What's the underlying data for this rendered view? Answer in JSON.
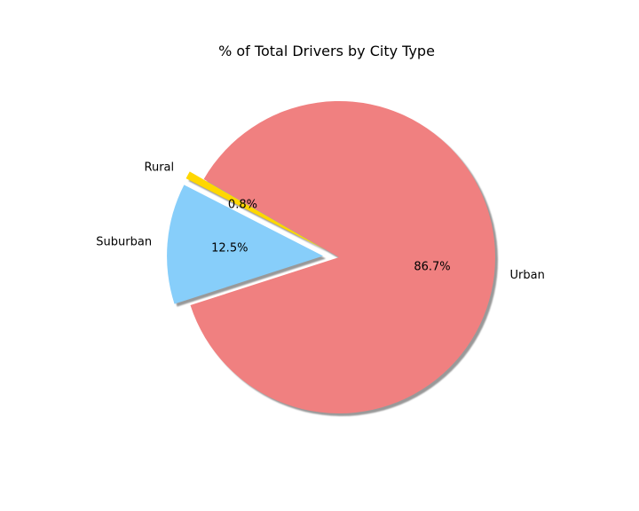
{
  "chart_data": {
    "type": "pie",
    "title": "% of Total Drivers by City Type",
    "slices": [
      {
        "label": "Rural",
        "value": 0.8,
        "pct_label": "0.8%",
        "color": "#ffd700",
        "explode": true
      },
      {
        "label": "Suburban",
        "value": 12.5,
        "pct_label": "12.5%",
        "color": "#87cefa",
        "explode": true
      },
      {
        "label": "Urban",
        "value": 86.7,
        "pct_label": "86.7%",
        "color": "#f08080",
        "explode": false
      }
    ],
    "start_angle": 150,
    "shadow": true,
    "legend": false
  }
}
